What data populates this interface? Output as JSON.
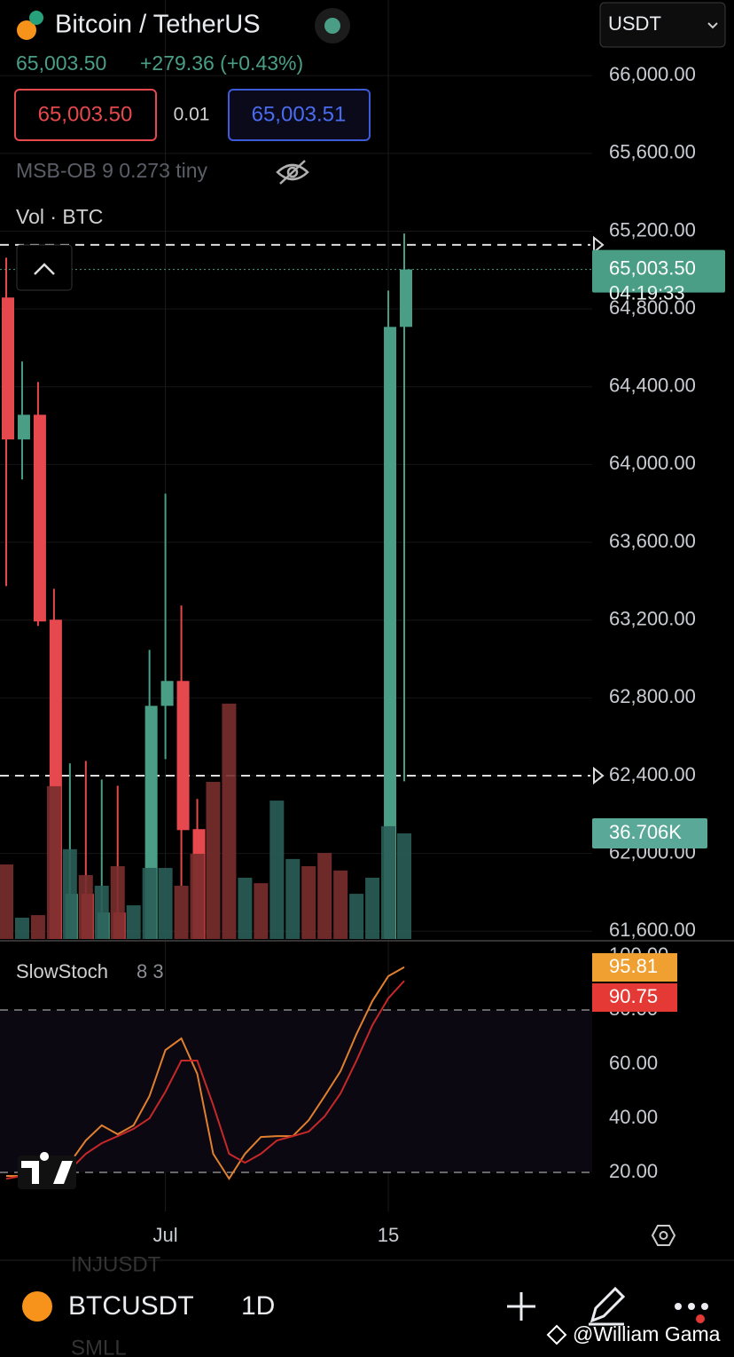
{
  "header": {
    "title": "Bitcoin / TetherUS",
    "price": "65,003.50",
    "change": "+279.36 (+0.43%)",
    "bid": "65,003.50",
    "spread": "0.01",
    "ask": "65,003.51",
    "indicator": "MSB-OB 9 0.273 tiny",
    "volume_label": "Vol · BTC",
    "quote": "USDT"
  },
  "chart_data": [
    {
      "type": "candlestick",
      "up_color": "#4a9e86",
      "down_color": "#e5484d",
      "categories": [
        null,
        null,
        null,
        null,
        null,
        null,
        null,
        null,
        null,
        null,
        "Jul",
        null,
        null,
        null,
        null,
        null,
        null,
        null,
        null,
        null,
        null,
        null,
        null,
        null,
        "15",
        null
      ],
      "open": [
        64859,
        64129,
        64256,
        63202,
        61560,
        61792,
        61560,
        61696,
        null,
        61560,
        62759,
        62887,
        62125,
        null,
        null,
        null,
        null,
        null,
        null,
        null,
        null,
        null,
        null,
        null,
        61560,
        64708
      ],
      "high": [
        65064,
        64530,
        64425,
        63361,
        62463,
        62476,
        62380,
        62348,
        null,
        63047,
        63850,
        63275,
        62280,
        null,
        null,
        null,
        null,
        null,
        null,
        null,
        null,
        null,
        null,
        null,
        64895,
        65188
      ],
      "low": [
        63375,
        63923,
        63170,
        61560,
        61560,
        61560,
        61560,
        61560,
        null,
        61560,
        62485,
        61833,
        61560,
        null,
        null,
        null,
        null,
        null,
        null,
        null,
        null,
        null,
        null,
        null,
        61560,
        62371
      ],
      "close": [
        64129,
        64256,
        63193,
        61560,
        61792,
        61560,
        61696,
        61560,
        null,
        62759,
        62887,
        62120,
        61560,
        null,
        null,
        null,
        null,
        null,
        null,
        null,
        null,
        null,
        null,
        null,
        64708,
        65003.5
      ],
      "ylim": [
        61560,
        66380
      ],
      "yticks": [
        {
          "value": 66000,
          "label": "66,000.00"
        },
        {
          "value": 65600,
          "label": "65,600.00"
        },
        {
          "value": 65200,
          "label": "65,200.00"
        },
        {
          "value": 64800,
          "label": "64,800.00"
        },
        {
          "value": 64400,
          "label": "64,400.00"
        },
        {
          "value": 64000,
          "label": "64,000.00"
        },
        {
          "value": 63600,
          "label": "63,600.00"
        },
        {
          "value": 63200,
          "label": "63,200.00"
        },
        {
          "value": 62800,
          "label": "62,800.00"
        },
        {
          "value": 62400,
          "label": "62,400.00"
        },
        {
          "value": 62000,
          "label": "62,000.00"
        },
        {
          "value": 61600,
          "label": "61,600.00"
        }
      ],
      "price_lines": [
        65130,
        62400
      ],
      "last_price": {
        "value": 65003.5,
        "label": "65,003.50",
        "timer": "04:19:33"
      }
    },
    {
      "type": "bar",
      "name": "Vol",
      "up_color": "#2a5e58",
      "down_color": "#7a2e2e",
      "directions": [
        "down",
        "up",
        "down",
        "down",
        "up",
        "down",
        "up",
        "down",
        "up",
        "up",
        "up",
        "down",
        "down",
        "down",
        "down",
        "up",
        "down",
        "up",
        "up",
        "down",
        "down",
        "down",
        "up",
        "up",
        "up",
        "up"
      ],
      "values": [
        25.9,
        7.4,
        8.3,
        53.1,
        31.2,
        22.2,
        18.5,
        25.3,
        11.7,
        24.7,
        24.7,
        18.5,
        29.6,
        54.6,
        81.8,
        21.3,
        19.4,
        48.1,
        27.8,
        25.3,
        29.9,
        23.8,
        15.7,
        21.3,
        39.2,
        36.706
      ],
      "last_label": "36.706K",
      "badge_color": "#5aa898"
    },
    {
      "type": "line",
      "title": "SlowStoch",
      "params": "8 3",
      "ylim": [
        5.6,
        104.9
      ],
      "band": [
        20,
        80
      ],
      "yticks": [
        {
          "value": 20,
          "label": "20.00"
        },
        {
          "value": 40,
          "label": "40.00"
        },
        {
          "value": 60,
          "label": "60.00"
        },
        {
          "value": 80,
          "label": "80.00"
        },
        {
          "value": 100,
          "label": "100.00"
        }
      ],
      "series": [
        {
          "color": "#e0802f",
          "badge_color": "#f0a030",
          "values": [
            18.7,
            18.7,
            17,
            17,
            23.6,
            31.8,
            37.4,
            34.1,
            37.4,
            48.2,
            65.2,
            69.5,
            56.4,
            26.9,
            17.7,
            26.9,
            33.1,
            33.4,
            33.4,
            39.3,
            48.2,
            57.4,
            71.1,
            83.3,
            92.5,
            95.81
          ],
          "last_label": "95.81"
        },
        {
          "color": "#c62828",
          "badge_color": "#e53935",
          "values": [
            17.7,
            18.7,
            17,
            15.4,
            21,
            26.9,
            30.8,
            33.4,
            36.1,
            40,
            49.8,
            61.3,
            61.3,
            44.9,
            26.9,
            23.6,
            26.9,
            31.8,
            33.4,
            35.1,
            40.7,
            49.2,
            61.3,
            74.4,
            84.3,
            90.75
          ],
          "last_label": "90.75"
        }
      ]
    }
  ],
  "footer": {
    "symbol": "BTCUSDT",
    "interval": "1D",
    "watermark": "@William Gama",
    "list_above": "INJUSDT",
    "list_below": "SMLL"
  }
}
